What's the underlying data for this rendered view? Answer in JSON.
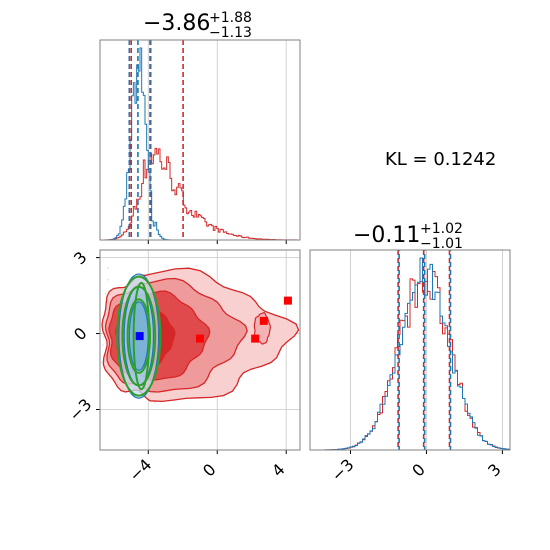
{
  "chart_data": {
    "type": "corner",
    "kl_label": "KL = 0.1242",
    "colors": {
      "blue": "#1f77b4",
      "red": "#d62728",
      "green": "#2ca02c",
      "grid": "#c8c8c8"
    },
    "params": [
      {
        "title_main": "−3.86",
        "title_sup": "+1.88",
        "title_sub": "−1.13",
        "range": [
          -6.8,
          4.8
        ],
        "ticks": [
          -4,
          0,
          4
        ],
        "tick_labels": [
          "−4",
          "0",
          "4"
        ],
        "quantiles_blue": [
          -5.1,
          -4.6,
          -3.9
        ],
        "quantiles_red": [
          -4.99,
          -3.86,
          -1.98
        ]
      },
      {
        "title_main": "−0.11",
        "title_sup": "+1.02",
        "title_sub": "−1.01",
        "range": [
          -4.6,
          3.3
        ],
        "ticks": [
          -3,
          0,
          3
        ],
        "tick_labels": [
          "−3",
          "0",
          "3"
        ],
        "quantiles_blue": [
          -1.12,
          -0.11,
          0.91
        ],
        "quantiles_red": [
          -1.12,
          -0.11,
          0.91
        ]
      }
    ],
    "scatter_markers": {
      "blue": [
        [
          -4.5,
          -0.1
        ]
      ],
      "red": [
        [
          -1.0,
          -0.2
        ],
        [
          2.2,
          -0.2
        ],
        [
          2.7,
          0.5
        ],
        [
          4.1,
          1.3
        ]
      ]
    }
  }
}
